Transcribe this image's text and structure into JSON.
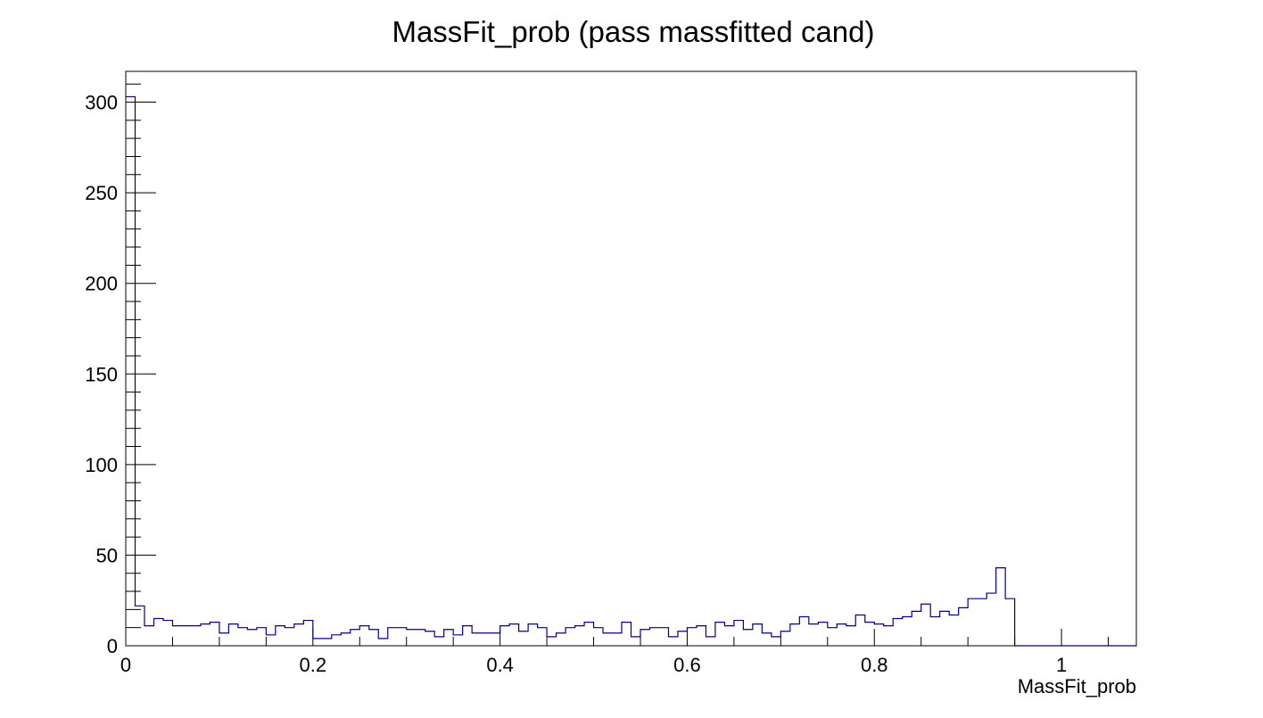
{
  "chart_data": {
    "type": "bar",
    "histogram_style": "step",
    "title": "MassFit_prob (pass massfitted cand)",
    "xlabel": "MassFit_prob",
    "ylabel": "",
    "xlim": [
      0,
      1.08
    ],
    "ylim": [
      0,
      317
    ],
    "x_ticks": [
      0,
      0.2,
      0.4,
      0.6,
      0.8,
      1
    ],
    "x_tick_labels": [
      "0",
      "0.2",
      "0.4",
      "0.6",
      "0.8",
      "1"
    ],
    "y_ticks": [
      0,
      50,
      100,
      150,
      200,
      250,
      300
    ],
    "y_tick_labels": [
      "0",
      "50",
      "100",
      "150",
      "200",
      "250",
      "300"
    ],
    "bin_width": 0.01,
    "bin_edges_range": [
      0,
      1.08
    ],
    "values": [
      303,
      22,
      11,
      15,
      14,
      11,
      11,
      11,
      12,
      13,
      7,
      12,
      10,
      9,
      10,
      6,
      11,
      10,
      12,
      14,
      4,
      4,
      6,
      7,
      9,
      11,
      9,
      4,
      10,
      10,
      9,
      9,
      8,
      5,
      9,
      6,
      11,
      7,
      7,
      7,
      11,
      12,
      8,
      12,
      10,
      5,
      7,
      10,
      11,
      13,
      10,
      7,
      7,
      13,
      5,
      9,
      10,
      10,
      5,
      8,
      10,
      11,
      5,
      13,
      11,
      14,
      9,
      12,
      7,
      5,
      8,
      12,
      16,
      12,
      13,
      10,
      12,
      11,
      17,
      13,
      12,
      11,
      15,
      16,
      19,
      23,
      16,
      19,
      17,
      21,
      26,
      26,
      29,
      43,
      26,
      0,
      0,
      0,
      0,
      0,
      0,
      0,
      0,
      0,
      0,
      0,
      0,
      0
    ],
    "grid": false,
    "legend": "none",
    "line_color": "#00008b",
    "frame_color": "#000000"
  }
}
